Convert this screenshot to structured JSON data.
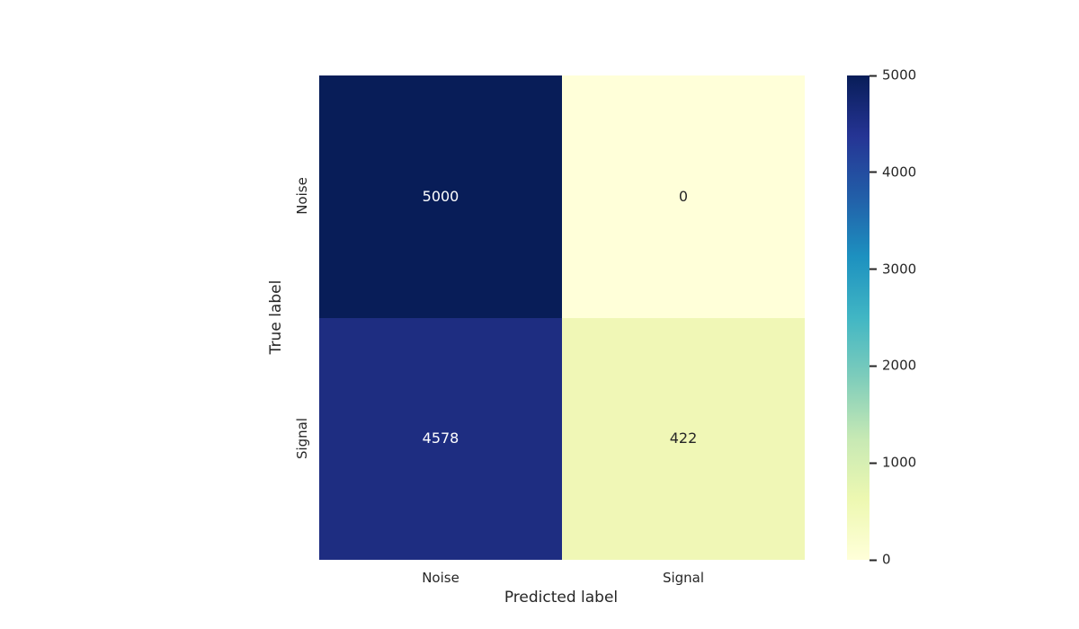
{
  "chart_data": {
    "type": "heatmap",
    "title": "",
    "xlabel": "Predicted label",
    "ylabel": "True label",
    "x_categories": [
      "Noise",
      "Signal"
    ],
    "y_categories": [
      "Noise",
      "Signal"
    ],
    "values": [
      [
        5000,
        0
      ],
      [
        4578,
        422
      ]
    ],
    "annotations": [
      [
        "5000",
        "0"
      ],
      [
        "4578",
        "422"
      ]
    ],
    "vmin": 0,
    "vmax": 5000,
    "colormap": "YlGnBu",
    "grid": false,
    "cell_colors": [
      [
        "#081d58",
        "#ffffd9"
      ],
      [
        "#1e2d81",
        "#f0f7b6"
      ]
    ],
    "annotation_colors": [
      [
        "#ffffff",
        "#262626"
      ],
      [
        "#ffffff",
        "#262626"
      ]
    ],
    "colorbar": {
      "position": "right",
      "ticks": [
        0,
        1000,
        2000,
        3000,
        4000,
        5000
      ],
      "gradient_stops": [
        "#ffffd9",
        "#edf8b1",
        "#c7e9b4",
        "#7fcdbb",
        "#41b6c4",
        "#1d91c0",
        "#225ea8",
        "#253494",
        "#081d58"
      ]
    }
  },
  "style": {
    "text_color": "#262626",
    "background": "#ffffff"
  }
}
